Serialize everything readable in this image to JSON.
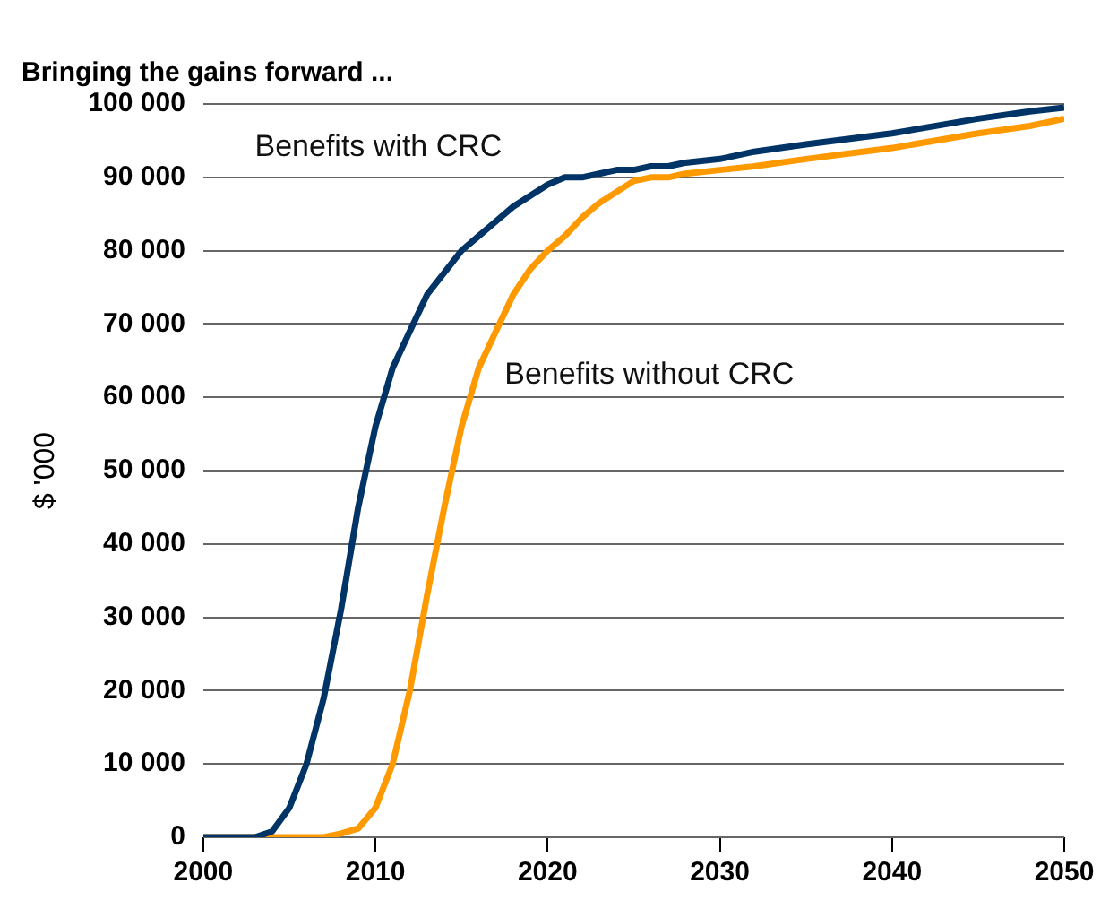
{
  "chart_data": {
    "type": "line",
    "title": "Bringing the gains forward ...",
    "ylabel": "$ '000",
    "xlim": [
      2000,
      2050
    ],
    "xticks": [
      2000,
      2010,
      2020,
      2030,
      2040,
      2050
    ],
    "ylim": [
      0,
      100000
    ],
    "yticks": [
      {
        "value": 0,
        "label": "0"
      },
      {
        "value": 10000,
        "label": "10 000"
      },
      {
        "value": 20000,
        "label": "20 000"
      },
      {
        "value": 30000,
        "label": "30 000"
      },
      {
        "value": 40000,
        "label": "40 000"
      },
      {
        "value": 50000,
        "label": "50 000"
      },
      {
        "value": 60000,
        "label": "60 000"
      },
      {
        "value": 70000,
        "label": "70 000"
      },
      {
        "value": 80000,
        "label": "80 000"
      },
      {
        "value": 90000,
        "label": "90 000"
      },
      {
        "value": 100000,
        "label": "100 000"
      }
    ],
    "grid": "y",
    "legend": false,
    "marker": "none",
    "series": [
      {
        "name": "Benefits with CRC",
        "color": "#003366",
        "x": [
          2000,
          2003,
          2004,
          2005,
          2006,
          2007,
          2008,
          2009,
          2010,
          2011,
          2012,
          2013,
          2014,
          2015,
          2016,
          2017,
          2018,
          2019,
          2020,
          2021,
          2022,
          2023,
          2024,
          2025,
          2026,
          2027,
          2028,
          2030,
          2032,
          2035,
          2040,
          2045,
          2048,
          2050
        ],
        "values": [
          0,
          0,
          800,
          4000,
          10000,
          19000,
          31000,
          45000,
          56000,
          64000,
          69000,
          74000,
          77000,
          80000,
          82000,
          84000,
          86000,
          87500,
          89000,
          90000,
          90000,
          90500,
          91000,
          91000,
          91500,
          91500,
          92000,
          92500,
          93500,
          94500,
          96000,
          98000,
          99000,
          99500
        ]
      },
      {
        "name": "Benefits without CRC",
        "color": "#ff9900",
        "x": [
          2000,
          2007,
          2008,
          2009,
          2010,
          2011,
          2012,
          2013,
          2014,
          2015,
          2016,
          2017,
          2018,
          2019,
          2020,
          2021,
          2022,
          2023,
          2024,
          2025,
          2026,
          2027,
          2028,
          2030,
          2032,
          2035,
          2040,
          2045,
          2048,
          2050
        ],
        "values": [
          0,
          0,
          500,
          1200,
          4000,
          10000,
          20000,
          33000,
          45000,
          56000,
          64000,
          69000,
          74000,
          77500,
          80000,
          82000,
          84500,
          86500,
          88000,
          89500,
          90000,
          90000,
          90500,
          91000,
          91500,
          92500,
          94000,
          96000,
          97000,
          98000
        ]
      }
    ]
  }
}
